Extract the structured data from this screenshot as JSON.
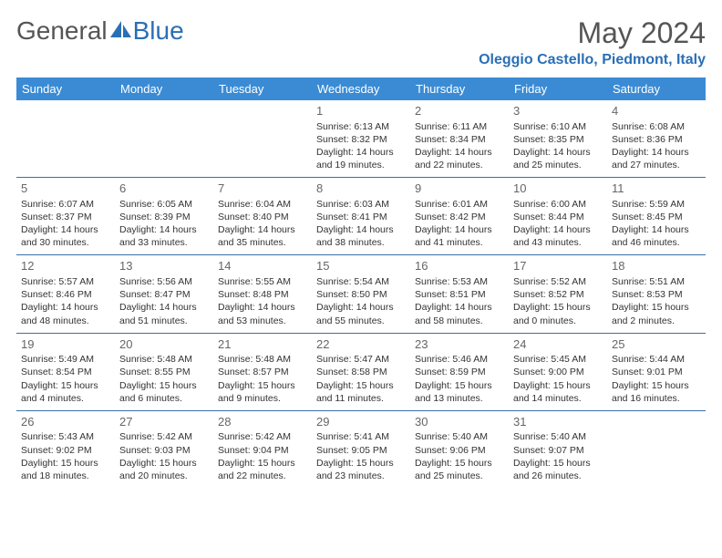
{
  "logo": {
    "text1": "General",
    "text2": "Blue"
  },
  "title": "May 2024",
  "location": "Oleggio Castello, Piedmont, Italy",
  "day_names": [
    "Sunday",
    "Monday",
    "Tuesday",
    "Wednesday",
    "Thursday",
    "Friday",
    "Saturday"
  ],
  "header_bg": "#3b8bd4",
  "header_fg": "#ffffff",
  "divider_color": "#3b6fa5",
  "text_color": "#333333",
  "daynum_color": "#666666",
  "accent_color": "#2a6fb5",
  "first_weekday": 3,
  "days": [
    {
      "n": "1",
      "sr": "6:13 AM",
      "ss": "8:32 PM",
      "dl": "14 hours and 19 minutes."
    },
    {
      "n": "2",
      "sr": "6:11 AM",
      "ss": "8:34 PM",
      "dl": "14 hours and 22 minutes."
    },
    {
      "n": "3",
      "sr": "6:10 AM",
      "ss": "8:35 PM",
      "dl": "14 hours and 25 minutes."
    },
    {
      "n": "4",
      "sr": "6:08 AM",
      "ss": "8:36 PM",
      "dl": "14 hours and 27 minutes."
    },
    {
      "n": "5",
      "sr": "6:07 AM",
      "ss": "8:37 PM",
      "dl": "14 hours and 30 minutes."
    },
    {
      "n": "6",
      "sr": "6:05 AM",
      "ss": "8:39 PM",
      "dl": "14 hours and 33 minutes."
    },
    {
      "n": "7",
      "sr": "6:04 AM",
      "ss": "8:40 PM",
      "dl": "14 hours and 35 minutes."
    },
    {
      "n": "8",
      "sr": "6:03 AM",
      "ss": "8:41 PM",
      "dl": "14 hours and 38 minutes."
    },
    {
      "n": "9",
      "sr": "6:01 AM",
      "ss": "8:42 PM",
      "dl": "14 hours and 41 minutes."
    },
    {
      "n": "10",
      "sr": "6:00 AM",
      "ss": "8:44 PM",
      "dl": "14 hours and 43 minutes."
    },
    {
      "n": "11",
      "sr": "5:59 AM",
      "ss": "8:45 PM",
      "dl": "14 hours and 46 minutes."
    },
    {
      "n": "12",
      "sr": "5:57 AM",
      "ss": "8:46 PM",
      "dl": "14 hours and 48 minutes."
    },
    {
      "n": "13",
      "sr": "5:56 AM",
      "ss": "8:47 PM",
      "dl": "14 hours and 51 minutes."
    },
    {
      "n": "14",
      "sr": "5:55 AM",
      "ss": "8:48 PM",
      "dl": "14 hours and 53 minutes."
    },
    {
      "n": "15",
      "sr": "5:54 AM",
      "ss": "8:50 PM",
      "dl": "14 hours and 55 minutes."
    },
    {
      "n": "16",
      "sr": "5:53 AM",
      "ss": "8:51 PM",
      "dl": "14 hours and 58 minutes."
    },
    {
      "n": "17",
      "sr": "5:52 AM",
      "ss": "8:52 PM",
      "dl": "15 hours and 0 minutes."
    },
    {
      "n": "18",
      "sr": "5:51 AM",
      "ss": "8:53 PM",
      "dl": "15 hours and 2 minutes."
    },
    {
      "n": "19",
      "sr": "5:49 AM",
      "ss": "8:54 PM",
      "dl": "15 hours and 4 minutes."
    },
    {
      "n": "20",
      "sr": "5:48 AM",
      "ss": "8:55 PM",
      "dl": "15 hours and 6 minutes."
    },
    {
      "n": "21",
      "sr": "5:48 AM",
      "ss": "8:57 PM",
      "dl": "15 hours and 9 minutes."
    },
    {
      "n": "22",
      "sr": "5:47 AM",
      "ss": "8:58 PM",
      "dl": "15 hours and 11 minutes."
    },
    {
      "n": "23",
      "sr": "5:46 AM",
      "ss": "8:59 PM",
      "dl": "15 hours and 13 minutes."
    },
    {
      "n": "24",
      "sr": "5:45 AM",
      "ss": "9:00 PM",
      "dl": "15 hours and 14 minutes."
    },
    {
      "n": "25",
      "sr": "5:44 AM",
      "ss": "9:01 PM",
      "dl": "15 hours and 16 minutes."
    },
    {
      "n": "26",
      "sr": "5:43 AM",
      "ss": "9:02 PM",
      "dl": "15 hours and 18 minutes."
    },
    {
      "n": "27",
      "sr": "5:42 AM",
      "ss": "9:03 PM",
      "dl": "15 hours and 20 minutes."
    },
    {
      "n": "28",
      "sr": "5:42 AM",
      "ss": "9:04 PM",
      "dl": "15 hours and 22 minutes."
    },
    {
      "n": "29",
      "sr": "5:41 AM",
      "ss": "9:05 PM",
      "dl": "15 hours and 23 minutes."
    },
    {
      "n": "30",
      "sr": "5:40 AM",
      "ss": "9:06 PM",
      "dl": "15 hours and 25 minutes."
    },
    {
      "n": "31",
      "sr": "5:40 AM",
      "ss": "9:07 PM",
      "dl": "15 hours and 26 minutes."
    }
  ],
  "labels": {
    "sunrise": "Sunrise:",
    "sunset": "Sunset:",
    "daylight": "Daylight:"
  }
}
